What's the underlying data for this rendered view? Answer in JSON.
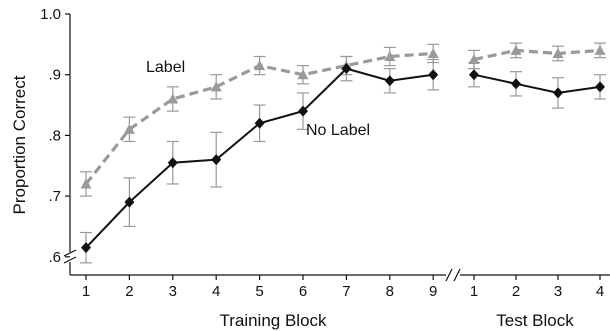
{
  "chart_data": {
    "type": "line",
    "ylabel": "Proportion Correct",
    "ylim": [
      0.57,
      1.0
    ],
    "yticks": [
      "1.0",
      ".9",
      ".8",
      ".7",
      ".6"
    ],
    "yticks_values": [
      1.0,
      0.9,
      0.8,
      0.7,
      0.6
    ],
    "grid": false,
    "panels": [
      {
        "xlabel": "Training Block",
        "categories": [
          "1",
          "2",
          "3",
          "4",
          "5",
          "6",
          "7",
          "8",
          "9"
        ],
        "series": [
          {
            "name": "Label",
            "color": "#9a9a9a",
            "style": "dashed",
            "marker": "triangle",
            "values": [
              0.72,
              0.81,
              0.86,
              0.88,
              0.915,
              0.9,
              0.915,
              0.93,
              0.935
            ],
            "errors": [
              0.02,
              0.02,
              0.02,
              0.02,
              0.015,
              0.015,
              0.015,
              0.015,
              0.015
            ]
          },
          {
            "name": "No Label",
            "color": "#111111",
            "style": "solid",
            "marker": "diamond",
            "values": [
              0.615,
              0.69,
              0.755,
              0.76,
              0.82,
              0.84,
              0.91,
              0.89,
              0.9
            ],
            "errors": [
              0.025,
              0.04,
              0.035,
              0.045,
              0.03,
              0.03,
              0.02,
              0.02,
              0.025
            ]
          }
        ]
      },
      {
        "xlabel": "Test Block",
        "categories": [
          "1",
          "2",
          "3",
          "4"
        ],
        "series": [
          {
            "name": "Label",
            "color": "#9a9a9a",
            "style": "dashed",
            "marker": "triangle",
            "values": [
              0.925,
              0.94,
              0.935,
              0.94
            ],
            "errors": [
              0.015,
              0.012,
              0.012,
              0.012
            ]
          },
          {
            "name": "No Label",
            "color": "#111111",
            "style": "solid",
            "marker": "diamond",
            "values": [
              0.9,
              0.885,
              0.87,
              0.88
            ],
            "errors": [
              0.02,
              0.02,
              0.025,
              0.02
            ]
          }
        ]
      }
    ]
  }
}
